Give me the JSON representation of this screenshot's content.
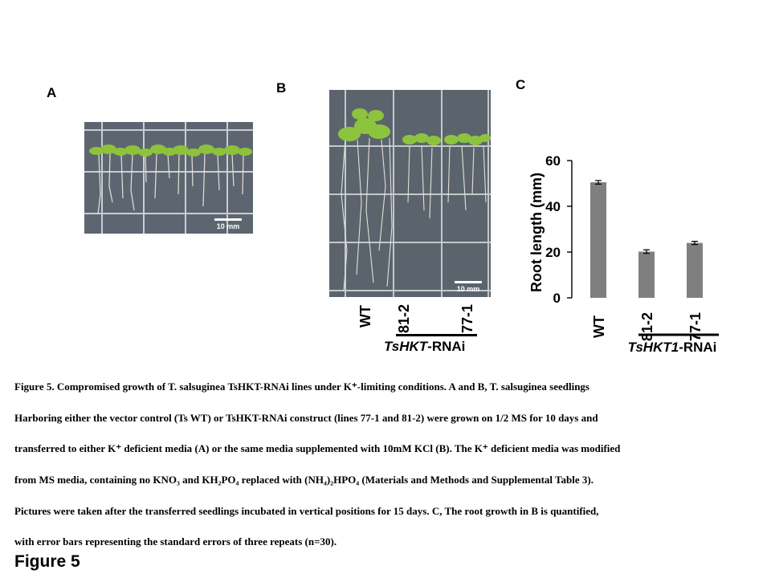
{
  "panels": {
    "a": {
      "letter": "A",
      "scale_label": "10 mm"
    },
    "b": {
      "letter": "B",
      "scale_label": "10 mm"
    },
    "c": {
      "letter": "C"
    }
  },
  "panel_b_labels": {
    "wt": "WT",
    "l812": "81-2",
    "l771": "77-1",
    "group_prefix": "TsHKT",
    "group_suffix": "-RNAi"
  },
  "chart_data": {
    "type": "bar",
    "categories": [
      "WT",
      "81-2",
      "77-1"
    ],
    "values": [
      50.5,
      20.2,
      24.0
    ],
    "errors": [
      0.8,
      0.8,
      0.7
    ],
    "ylabel": "Root length (mm)",
    "ylim": [
      0,
      60
    ],
    "yticks": [
      0,
      20,
      40,
      60
    ],
    "group_label_prefix": "TsHKT1",
    "group_label_suffix": "-RNAi",
    "bar_color": "#7f7f7f",
    "grid": false
  },
  "caption": {
    "lines": [
      "Figure 5. Compromised growth of T. salsuginea TsHKT-RNAi lines under K⁺-limiting conditions. A and B, T. salsuginea seedlings",
      "Harboring either the vector control (Ts WT) or TsHKT-RNAi construct (lines 77-1 and 81-2) were grown on 1/2 MS for 10 days and",
      "transferred to either K⁺ deficient media (A) or the same media supplemented with 10mM KCl (B). The K⁺ deficient media was modified",
      "from MS media, containing no KNO₃ and KH₂PO₄ replaced with (NH₄)₂HPO₄ (Materials and Methods and Supplemental Table 3).",
      "Pictures were taken after the transferred seedlings incubated in vertical positions for 15 days. C, The root growth in B is quantified,",
      "with error bars representing the standard errors of three repeats (n=30)."
    ]
  },
  "figure_label": "Figure 5"
}
